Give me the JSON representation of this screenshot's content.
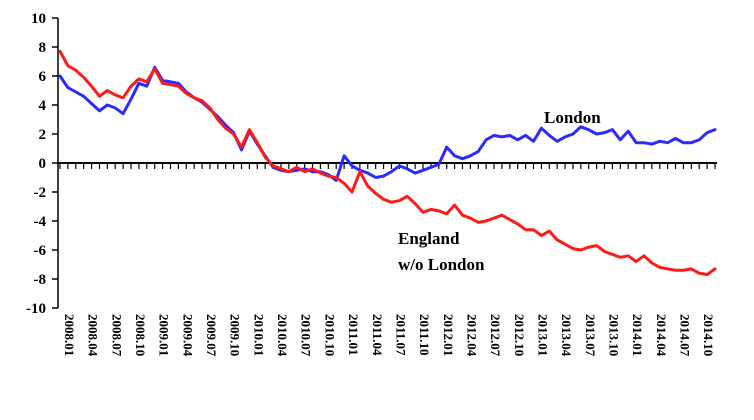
{
  "chart_data": {
    "type": "line",
    "title": "",
    "xlabel": "",
    "ylabel": "",
    "ylim": [
      -10,
      10
    ],
    "ytick_step": 2,
    "yticks": [
      "10",
      "8",
      "6",
      "4",
      "2",
      "0",
      "-2",
      "-4",
      "-6",
      "-8",
      "-10"
    ],
    "x_tick_labels": [
      "2008.01",
      "2008.04",
      "2008.07",
      "2008.10",
      "2009.01",
      "2009.04",
      "2009.07",
      "2009.10",
      "2010.01",
      "2010.04",
      "2010.07",
      "2010.10",
      "2011.01",
      "2011.04",
      "2011.07",
      "2011.10",
      "2012.01",
      "2012.04",
      "2012.07",
      "2012.10",
      "2013.01",
      "2013.04",
      "2013.07",
      "2013.10",
      "2014.01",
      "2014.04",
      "2014.07",
      "2014.10"
    ],
    "x_start": "2008.01",
    "x_end": "2014.12",
    "grid": false,
    "series": [
      {
        "name": "London",
        "label_lines": [
          "London"
        ],
        "color": "#2b2bff",
        "values": [
          6.0,
          5.2,
          4.9,
          4.6,
          4.1,
          3.6,
          4.0,
          3.8,
          3.4,
          4.4,
          5.5,
          5.3,
          6.6,
          5.7,
          5.6,
          5.5,
          4.9,
          4.5,
          4.2,
          3.7,
          3.2,
          2.6,
          2.1,
          0.9,
          2.2,
          1.3,
          0.5,
          -0.3,
          -0.5,
          -0.6,
          -0.5,
          -0.4,
          -0.6,
          -0.6,
          -0.8,
          -1.2,
          0.5,
          -0.2,
          -0.5,
          -0.7,
          -1.0,
          -0.9,
          -0.6,
          -0.2,
          -0.4,
          -0.7,
          -0.5,
          -0.3,
          -0.1,
          1.1,
          0.5,
          0.3,
          0.5,
          0.8,
          1.6,
          1.9,
          1.8,
          1.9,
          1.6,
          1.9,
          1.5,
          2.4,
          1.9,
          1.5,
          1.8,
          2.0,
          2.5,
          2.3,
          2.0,
          2.1,
          2.3,
          1.6,
          2.2,
          1.4,
          1.4,
          1.3,
          1.5,
          1.4,
          1.7,
          1.4,
          1.4,
          1.6,
          2.1,
          2.3
        ]
      },
      {
        "name": "England w/o London",
        "label_lines": [
          "England",
          "w/o London"
        ],
        "color": "#ff1a1a",
        "values": [
          7.7,
          6.7,
          6.4,
          5.9,
          5.3,
          4.6,
          5.0,
          4.7,
          4.5,
          5.3,
          5.8,
          5.6,
          6.5,
          5.5,
          5.4,
          5.3,
          4.8,
          4.5,
          4.3,
          3.8,
          3.0,
          2.4,
          2.0,
          1.1,
          2.3,
          1.4,
          0.4,
          -0.2,
          -0.4,
          -0.6,
          -0.3,
          -0.6,
          -0.4,
          -0.7,
          -0.9,
          -1.0,
          -1.4,
          -2.0,
          -0.6,
          -1.6,
          -2.1,
          -2.5,
          -2.7,
          -2.6,
          -2.3,
          -2.8,
          -3.4,
          -3.2,
          -3.3,
          -3.5,
          -2.9,
          -3.6,
          -3.8,
          -4.1,
          -4.0,
          -3.8,
          -3.6,
          -3.9,
          -4.2,
          -4.6,
          -4.6,
          -5.0,
          -4.7,
          -5.3,
          -5.6,
          -5.9,
          -6.0,
          -5.8,
          -5.7,
          -6.1,
          -6.3,
          -6.5,
          -6.4,
          -6.8,
          -6.4,
          -6.9,
          -7.2,
          -7.3,
          -7.4,
          -7.4,
          -7.3,
          -7.6,
          -7.7,
          -7.3
        ]
      }
    ]
  }
}
